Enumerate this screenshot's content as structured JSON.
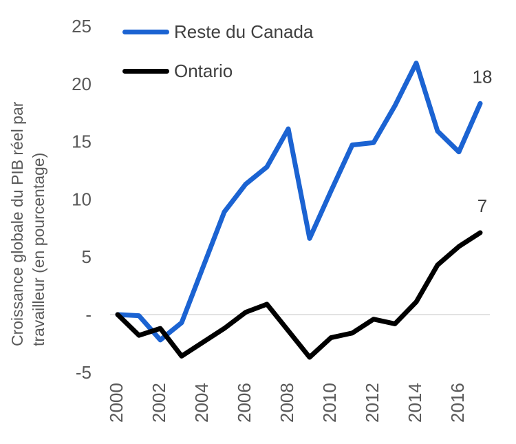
{
  "chart_data": {
    "type": "line",
    "title": "",
    "ylabel_lines": [
      "Croissance globale du PIB réel par",
      "travailleur (en pourcentage)"
    ],
    "x": [
      2000,
      2001,
      2002,
      2003,
      2004,
      2005,
      2006,
      2007,
      2008,
      2009,
      2010,
      2011,
      2012,
      2013,
      2014,
      2015,
      2016,
      2017
    ],
    "series": [
      {
        "name": "Reste du Canada",
        "color": "#1B63D2",
        "end_label": "18",
        "values": [
          0.0,
          -0.1,
          -2.2,
          -0.7,
          4.1,
          8.9,
          11.3,
          12.8,
          16.1,
          6.6,
          10.7,
          14.7,
          14.9,
          18.1,
          21.8,
          15.9,
          14.1,
          18.3
        ]
      },
      {
        "name": "Ontario",
        "color": "#000000",
        "end_label": "7",
        "values": [
          0.0,
          -1.8,
          -1.2,
          -3.6,
          -2.4,
          -1.2,
          0.2,
          0.9,
          -1.4,
          -3.7,
          -2.0,
          -1.6,
          -0.4,
          -0.8,
          1.1,
          4.3,
          5.9,
          7.1
        ]
      }
    ],
    "yticks": [
      {
        "value": 25,
        "label": "25"
      },
      {
        "value": 20,
        "label": "20"
      },
      {
        "value": 15,
        "label": "15"
      },
      {
        "value": 10,
        "label": "10"
      },
      {
        "value": 5,
        "label": "5"
      },
      {
        "value": 0,
        "label": "-"
      },
      {
        "value": -5,
        "label": "-5"
      }
    ],
    "xticks": [
      2000,
      2002,
      2004,
      2006,
      2008,
      2010,
      2012,
      2014,
      2016
    ],
    "ylim": [
      -5,
      25
    ],
    "xlim": [
      2000,
      2017
    ],
    "grid": "zero-line-only",
    "legend_position": "top-left-inside",
    "colors": {
      "tick_label": "#595959",
      "axis_title": "#595959",
      "legend_text": "#404040",
      "end_label": "#404040",
      "zero_line": "#D9D9D9",
      "background": "#FFFFFF"
    }
  }
}
